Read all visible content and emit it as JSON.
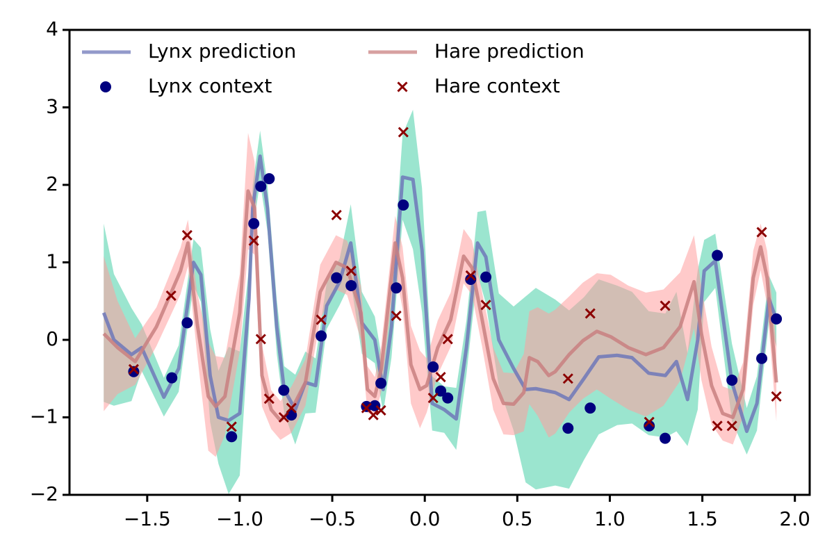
{
  "chart_data": {
    "type": "line",
    "xlim": [
      -1.92,
      2.08
    ],
    "ylim": [
      -2,
      4
    ],
    "xticks": [
      {
        "value": -1.5,
        "label": "−1.5"
      },
      {
        "value": -1.0,
        "label": "−1.0"
      },
      {
        "value": -0.5,
        "label": "−0.5"
      },
      {
        "value": 0.0,
        "label": "0.0"
      },
      0.5,
      {
        "value": 1.0,
        "label": "1.0"
      },
      1.5,
      {
        "value": 2.0,
        "label": "2.0"
      }
    ],
    "yticks": [
      {
        "value": -2,
        "label": "−2"
      },
      {
        "value": -1,
        "label": "−1"
      },
      0,
      1,
      2,
      3,
      4
    ],
    "legend": "upper left",
    "legend_columns": 2,
    "series": [
      {
        "name": "Lynx prediction",
        "type": "line",
        "color": "#6f78b8",
        "band_color": "#49cfa8",
        "x": [
          -1.735,
          -1.68,
          -1.585,
          -1.53,
          -1.41,
          -1.33,
          -1.25,
          -1.21,
          -1.16,
          -1.115,
          -1.06,
          -1.0,
          -0.95,
          -0.93,
          -0.89,
          -0.85,
          -0.8,
          -0.76,
          -0.7,
          -0.645,
          -0.59,
          -0.53,
          -0.46,
          -0.4,
          -0.34,
          -0.27,
          -0.225,
          -0.18,
          -0.12,
          -0.064,
          -0.015,
          0.04,
          0.105,
          0.17,
          0.225,
          0.285,
          0.33,
          0.4,
          0.48,
          0.545,
          0.6,
          0.705,
          0.78,
          0.86,
          0.94,
          1.04,
          1.12,
          1.21,
          1.3,
          1.36,
          1.42,
          1.475,
          1.51,
          1.57,
          1.66,
          1.74,
          1.795,
          1.86,
          1.9
        ],
        "values": [
          0.35,
          0,
          -0.19,
          -0.1,
          -0.74,
          -0.37,
          1.0,
          0.84,
          -0.46,
          -1.0,
          -1.04,
          -0.95,
          0.53,
          1.7,
          2.37,
          1.7,
          0.17,
          -0.64,
          -0.9,
          -0.55,
          -0.59,
          0.44,
          0.75,
          1.25,
          0.22,
          0.0,
          -0.64,
          0.17,
          2.1,
          2.07,
          1.16,
          -0.82,
          -0.9,
          -1.02,
          -0.1,
          1.25,
          1.07,
          0,
          -0.37,
          -0.64,
          -0.63,
          -0.68,
          -0.77,
          -0.5,
          -0.22,
          -0.2,
          -0.23,
          -0.43,
          -0.46,
          -0.28,
          -0.77,
          0,
          0.89,
          1.02,
          -0.55,
          -1.18,
          -0.82,
          0.53,
          0.26
        ],
        "lower": [
          -0.8,
          -0.85,
          -0.79,
          -0.4,
          -0.99,
          -0.67,
          0.7,
          0.49,
          -1.06,
          -1.6,
          -1.99,
          -1.75,
          0.13,
          1.4,
          2.04,
          1.4,
          -0.18,
          -0.94,
          -1.35,
          -0.95,
          -0.94,
          0.14,
          0.45,
          0.75,
          -0.18,
          -0.3,
          -0.94,
          -0.23,
          1.55,
          1.17,
          0.36,
          -1.17,
          -1.2,
          -1.42,
          -0.45,
          0.85,
          0.47,
          -0.6,
          -1.17,
          -1.84,
          -1.93,
          -1.88,
          -1.92,
          -1.55,
          -1.22,
          -1.1,
          -1.08,
          -1.23,
          -1.26,
          -1.18,
          -1.37,
          -0.9,
          0.49,
          0.67,
          -1.05,
          -1.48,
          -1.17,
          0.23,
          -0.09
        ],
        "upper": [
          1.5,
          0.85,
          0.41,
          0.2,
          -0.49,
          -0.07,
          1.3,
          1.19,
          0.14,
          -0.4,
          -0.09,
          -0.15,
          0.93,
          2.0,
          2.7,
          2.0,
          0.52,
          -0.34,
          -0.45,
          -0.15,
          -0.24,
          0.74,
          1.05,
          1.75,
          0.62,
          0.3,
          -0.34,
          0.57,
          2.65,
          2.97,
          1.96,
          -0.47,
          -0.6,
          -0.62,
          0.25,
          1.65,
          1.67,
          0.6,
          0.43,
          0.56,
          0.67,
          0.52,
          0.38,
          0.55,
          0.78,
          0.7,
          0.62,
          0.37,
          0.34,
          0.62,
          -0.17,
          0.9,
          1.29,
          1.37,
          -0.05,
          -0.88,
          -0.47,
          0.83,
          0.61
        ]
      },
      {
        "name": "Lynx context",
        "type": "scatter",
        "marker": "o",
        "color": "#00007f",
        "x": [
          -1.573,
          -1.367,
          -1.284,
          -1.044,
          -0.924,
          -0.886,
          -0.841,
          -0.762,
          -0.721,
          -0.56,
          -0.477,
          -0.398,
          -0.315,
          -0.27,
          -0.237,
          -0.154,
          -0.116,
          0.045,
          0.086,
          0.124,
          0.248,
          0.33,
          0.774,
          0.894,
          1.213,
          1.299,
          1.581,
          1.66,
          1.821,
          1.9
        ],
        "values": [
          -0.41,
          -0.49,
          0.22,
          -1.25,
          1.5,
          1.98,
          2.08,
          -0.65,
          -0.97,
          0.05,
          0.8,
          0.7,
          -0.86,
          -0.85,
          -0.56,
          0.67,
          1.74,
          -0.35,
          -0.66,
          -0.75,
          0.78,
          0.81,
          -1.14,
          -0.88,
          -1.11,
          -1.27,
          1.09,
          -0.52,
          -0.24,
          0.27
        ]
      },
      {
        "name": "Hare prediction",
        "type": "line",
        "color": "#c98080",
        "band_color": "#ff9e9e",
        "x": [
          -1.735,
          -1.66,
          -1.565,
          -1.45,
          -1.32,
          -1.28,
          -1.23,
          -1.17,
          -1.13,
          -1.08,
          -1.0,
          -0.955,
          -0.92,
          -0.88,
          -0.83,
          -0.78,
          -0.72,
          -0.645,
          -0.565,
          -0.48,
          -0.42,
          -0.345,
          -0.31,
          -0.27,
          -0.235,
          -0.16,
          -0.12,
          -0.075,
          -0.026,
          0.01,
          0.07,
          0.14,
          0.21,
          0.255,
          0.31,
          0.37,
          0.425,
          0.48,
          0.535,
          0.565,
          0.61,
          0.67,
          0.705,
          0.78,
          0.855,
          0.93,
          1.005,
          1.1,
          1.195,
          1.29,
          1.38,
          1.455,
          1.495,
          1.55,
          1.61,
          1.665,
          1.72,
          1.775,
          1.815,
          1.85,
          1.9
        ],
        "values": [
          0.08,
          -0.1,
          -0.28,
          0.17,
          0.89,
          1.25,
          0.21,
          -0.73,
          -0.86,
          -0.73,
          0.35,
          1.92,
          1.7,
          -0.46,
          -0.9,
          -1.04,
          -0.9,
          -0.55,
          0.62,
          1.0,
          0.93,
          0.35,
          -0.64,
          -0.73,
          -0.37,
          1.25,
          0.8,
          -0.32,
          -0.64,
          -0.59,
          -0.1,
          0.26,
          1.08,
          0.93,
          0.26,
          -0.5,
          -0.82,
          -0.83,
          -0.68,
          -0.23,
          -0.28,
          -0.46,
          -0.41,
          -0.19,
          -0.01,
          0.11,
          0.04,
          -0.1,
          -0.19,
          -0.1,
          0.17,
          0.75,
          0.08,
          -0.59,
          -0.95,
          -1.0,
          -0.64,
          0.8,
          1.2,
          0.8,
          -0.55
        ],
        "lower": [
          -0.92,
          -0.7,
          -0.58,
          -0.08,
          0.59,
          0.95,
          -0.19,
          -1.43,
          -1.51,
          -1.23,
          -0.15,
          1.17,
          1.1,
          -0.86,
          -1.15,
          -1.29,
          -1.2,
          -0.85,
          0.27,
          0.65,
          0.58,
          0.0,
          -0.94,
          -0.98,
          -0.67,
          0.9,
          0.4,
          -0.82,
          -1.14,
          -0.94,
          -0.45,
          -0.09,
          0.73,
          0.58,
          -0.09,
          -0.9,
          -1.22,
          -1.23,
          -1.18,
          -0.83,
          -0.98,
          -1.26,
          -1.21,
          -0.94,
          -0.76,
          -0.64,
          -0.76,
          -0.9,
          -0.99,
          -0.85,
          -0.53,
          0.15,
          -0.52,
          -1.09,
          -1.3,
          -1.35,
          -0.99,
          0.45,
          0.9,
          0.45,
          -1.05
        ],
        "upper": [
          1.08,
          0.5,
          0.02,
          0.42,
          1.19,
          1.55,
          0.61,
          -0.03,
          -0.21,
          -0.23,
          0.85,
          2.67,
          2.3,
          -0.06,
          -0.65,
          -0.79,
          -0.6,
          -0.25,
          0.97,
          1.35,
          1.28,
          0.7,
          -0.34,
          -0.48,
          -0.07,
          1.6,
          1.2,
          0.18,
          -0.14,
          -0.24,
          0.25,
          0.61,
          1.43,
          1.28,
          0.61,
          -0.1,
          -0.42,
          -0.43,
          -0.18,
          0.37,
          0.42,
          0.34,
          0.39,
          0.56,
          0.74,
          0.86,
          0.84,
          0.7,
          0.61,
          0.65,
          0.87,
          1.35,
          0.68,
          -0.09,
          -0.6,
          -0.65,
          -0.29,
          1.15,
          1.5,
          1.15,
          -0.05
        ]
      },
      {
        "name": "Hare context",
        "type": "scatter",
        "marker": "x",
        "color": "#8b0000",
        "x": [
          -1.573,
          -1.371,
          -1.284,
          -1.044,
          -0.924,
          -0.886,
          -0.841,
          -0.762,
          -0.721,
          -0.56,
          -0.477,
          -0.398,
          -0.315,
          -0.278,
          -0.237,
          -0.154,
          -0.116,
          0.045,
          0.086,
          0.124,
          0.248,
          0.33,
          0.774,
          0.894,
          1.213,
          1.299,
          1.581,
          1.66,
          1.821,
          1.9
        ],
        "values": [
          -0.38,
          0.57,
          1.35,
          -1.12,
          1.28,
          0.01,
          -0.76,
          -1.0,
          -0.88,
          0.26,
          1.61,
          0.89,
          -0.88,
          -0.97,
          -0.91,
          0.31,
          2.68,
          -0.75,
          -0.48,
          0.01,
          0.83,
          0.45,
          -0.5,
          0.34,
          -1.06,
          0.44,
          -1.11,
          -1.11,
          1.39,
          -0.73
        ]
      }
    ]
  }
}
